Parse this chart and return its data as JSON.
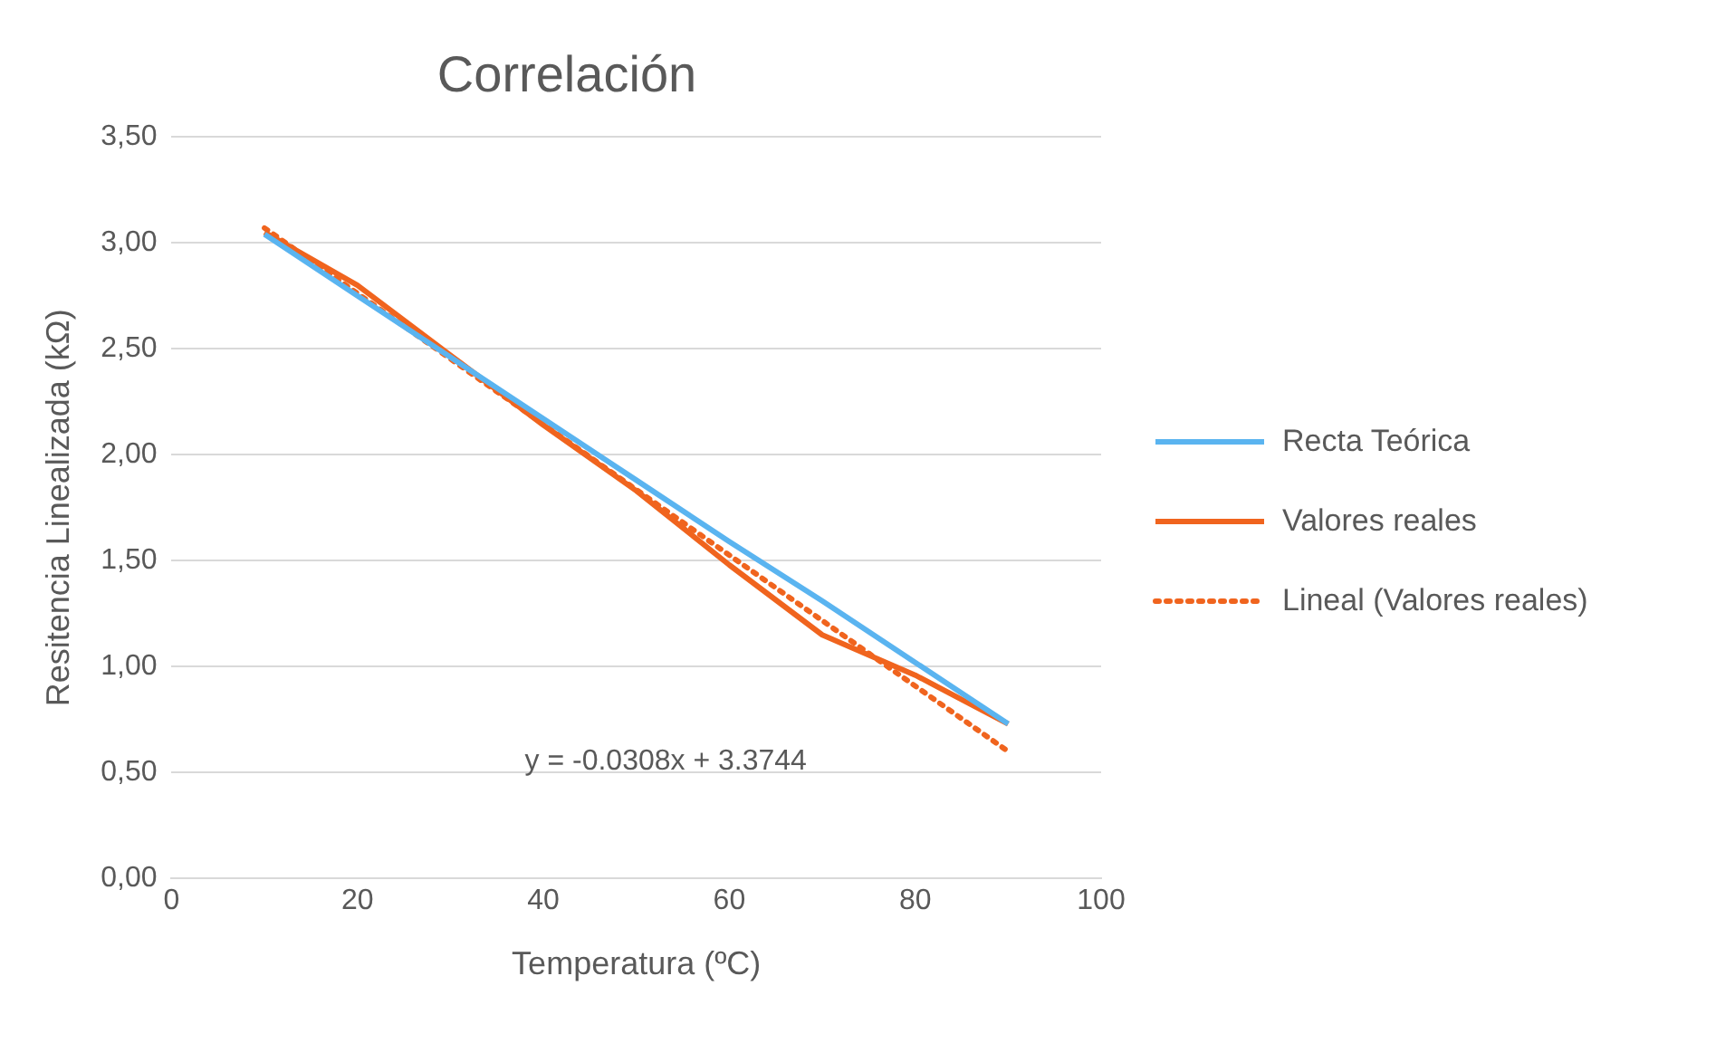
{
  "chart_data": {
    "type": "line",
    "title": "Correlación",
    "xlabel": "Temperatura (ºC)",
    "ylabel": "Resitencia Linealizada (kΩ)",
    "x": [
      10,
      20,
      30,
      40,
      50,
      60,
      70,
      80,
      90
    ],
    "series": [
      {
        "name": "Recta Teórica",
        "color": "#5ab4f0",
        "values": [
          3.04,
          2.75,
          2.46,
          2.17,
          1.88,
          1.59,
          1.31,
          1.02,
          0.73
        ]
      },
      {
        "name": "Valores reales",
        "color": "#f0641e",
        "values": [
          3.05,
          2.8,
          2.47,
          2.14,
          1.83,
          1.48,
          1.15,
          0.96,
          0.73
        ]
      },
      {
        "name": "Lineal (Valores reales)",
        "color": "#f0641e",
        "type": "line",
        "line_style": "dotted",
        "x": [
          10,
          90
        ],
        "values": [
          3.07,
          0.6
        ]
      }
    ],
    "xlim": [
      0,
      100
    ],
    "xticks": [
      0,
      20,
      40,
      60,
      80,
      100
    ],
    "ylim": [
      0,
      3.5
    ],
    "yticks": [
      {
        "value": 0,
        "label": "0,00"
      },
      {
        "value": 0.5,
        "label": "0,50"
      },
      {
        "value": 1,
        "label": "1,00"
      },
      {
        "value": 1.5,
        "label": "1,50"
      },
      {
        "value": 2,
        "label": "2,00"
      },
      {
        "value": 2.5,
        "label": "2,50"
      },
      {
        "value": 3,
        "label": "3,00"
      },
      {
        "value": 3.5,
        "label": "3,50"
      }
    ],
    "grid": "y",
    "legend": "right",
    "marker": "none",
    "line_style": "solid",
    "annotations": [
      "y = -0.0308x + 3.3744"
    ]
  }
}
